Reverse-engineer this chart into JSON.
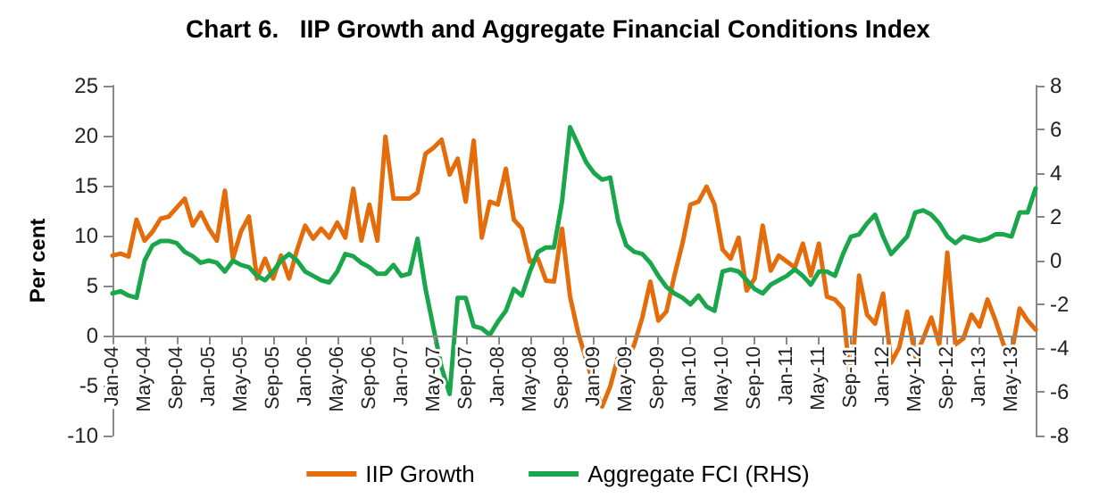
{
  "chart_data": {
    "type": "line",
    "title": "Chart 6.   IIP Growth and Aggregate Financial Conditions Index",
    "ylabel": "Per cent",
    "categories": [
      "Jan-04",
      null,
      null,
      null,
      "May-04",
      null,
      null,
      null,
      "Sep-04",
      null,
      null,
      null,
      "Jan-05",
      null,
      null,
      null,
      "May-05",
      null,
      null,
      null,
      "Sep-05",
      null,
      null,
      null,
      "Jan-06",
      null,
      null,
      null,
      "May-06",
      null,
      null,
      null,
      "Sep-06",
      null,
      null,
      null,
      "Jan-07",
      null,
      null,
      null,
      "May-07",
      null,
      null,
      null,
      "Sep-07",
      null,
      null,
      null,
      "Jan-08",
      null,
      null,
      null,
      "May-08",
      null,
      null,
      null,
      "Sep-08",
      null,
      null,
      null,
      "Jan-09",
      null,
      null,
      null,
      "May-09",
      null,
      null,
      null,
      "Sep-09",
      null,
      null,
      null,
      "Jan-10",
      null,
      null,
      null,
      "May-10",
      null,
      null,
      null,
      "Sep-10",
      null,
      null,
      null,
      "Jan-11",
      null,
      null,
      null,
      "May-11",
      null,
      null,
      null,
      "Sep-11",
      null,
      null,
      null,
      "Jan-12",
      null,
      null,
      null,
      "May-12",
      null,
      null,
      null,
      "Sep-12",
      null,
      null,
      null,
      "Jan-13",
      null,
      null,
      null,
      "May-13",
      null,
      null,
      null
    ],
    "series": [
      {
        "name": "IIP Growth",
        "color": "#e46c0a",
        "values": [
          8.0,
          8.2,
          7.9,
          11.6,
          9.5,
          10.4,
          11.7,
          11.9,
          12.8,
          13.7,
          11.0,
          12.3,
          10.7,
          9.5,
          14.5,
          7.7,
          10.4,
          11.9,
          5.7,
          7.7,
          5.7,
          8.0,
          5.7,
          8.6,
          11.0,
          9.7,
          10.7,
          9.8,
          11.3,
          9.8,
          14.7,
          9.5,
          13.1,
          9.5,
          19.9,
          13.7,
          13.7,
          13.7,
          14.3,
          18.2,
          18.8,
          19.6,
          16.1,
          17.7,
          13.4,
          19.5,
          9.8,
          13.4,
          13.1,
          16.7,
          11.6,
          10.7,
          7.4,
          7.7,
          5.5,
          5.4,
          10.7,
          3.9,
          0.3,
          -2.4,
          -5.1,
          -7.1,
          -5.1,
          -2.1,
          -2.7,
          -0.9,
          1.8,
          5.4,
          1.5,
          2.4,
          6.0,
          9.2,
          13.1,
          13.4,
          14.9,
          13.1,
          8.6,
          7.7,
          9.8,
          4.5,
          5.7,
          11.0,
          6.5,
          8.0,
          7.4,
          6.8,
          9.2,
          6.0,
          9.2,
          3.9,
          3.6,
          2.7,
          -5.1,
          6.0,
          2.1,
          1.2,
          4.2,
          -2.7,
          -1.2,
          2.4,
          -2.1,
          -0.3,
          1.8,
          -0.9,
          8.3,
          -0.9,
          -0.3,
          2.1,
          0.9,
          3.6,
          1.5,
          -0.9,
          -1.8,
          2.7,
          1.5,
          0.6
        ]
      },
      {
        "name": "Aggregate FCI (RHS)",
        "color": "#1aa64a",
        "axis": "y2",
        "values": [
          -1.5,
          -1.4,
          -1.6,
          -1.7,
          0,
          0.7,
          0.9,
          0.9,
          0.8,
          0.4,
          0.2,
          -0.1,
          0,
          -0.1,
          -0.5,
          0,
          -0.2,
          -0.3,
          -0.7,
          -0.9,
          -0.5,
          0,
          0.3,
          0,
          -0.5,
          -0.7,
          -0.9,
          -1.0,
          -0.5,
          0.3,
          0.2,
          -0.1,
          -0.3,
          -0.6,
          -0.6,
          -0.2,
          -0.7,
          -0.6,
          1.0,
          -1.3,
          -3.1,
          -4.9,
          -6.1,
          -1.7,
          -1.7,
          -3.0,
          -3.1,
          -3.4,
          -2.8,
          -2.3,
          -1.3,
          -1.6,
          -0.5,
          0.4,
          0.6,
          0.6,
          2.7,
          6.1,
          5.3,
          4.5,
          4.0,
          3.7,
          3.8,
          1.8,
          0.7,
          0.4,
          0.3,
          -0.1,
          -0.7,
          -1.2,
          -1.5,
          -1.7,
          -2.0,
          -1.6,
          -2.1,
          -2.3,
          -0.5,
          -0.4,
          -0.5,
          -0.9,
          -1.3,
          -1.5,
          -1.1,
          -0.9,
          -0.7,
          -0.4,
          -0.7,
          -1.1,
          -0.5,
          -0.5,
          -0.7,
          0.3,
          1.1,
          1.2,
          1.7,
          2.1,
          1.1,
          0.3,
          0.7,
          1.1,
          2.2,
          2.3,
          2.1,
          1.7,
          1.1,
          0.8,
          1.1,
          1.0,
          0.9,
          1.0,
          1.2,
          1.2,
          1.1,
          2.2,
          2.2,
          3.3
        ]
      }
    ],
    "ylim": [
      -10,
      25
    ],
    "yticks": [
      -10,
      -5,
      0,
      5,
      10,
      15,
      20,
      25
    ],
    "y2lim": [
      -8,
      8
    ],
    "y2ticks": [
      -8,
      -6,
      -4,
      -2,
      0,
      2,
      4,
      6,
      8
    ],
    "legend": "bottom",
    "grid": false,
    "marker": "none",
    "line_style": "solid"
  }
}
